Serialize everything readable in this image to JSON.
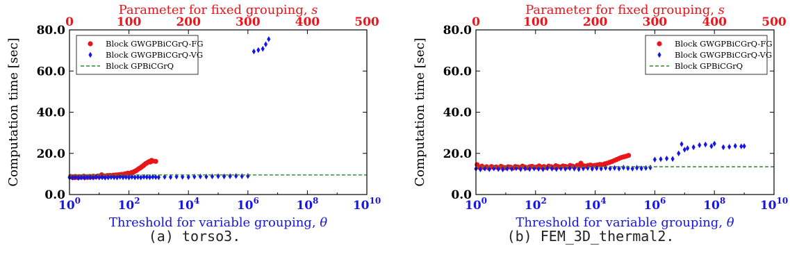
{
  "chart_data": [
    {
      "type": "scatter",
      "caption_label": "(a)",
      "caption_matrix": "torso3",
      "caption_suffix": ".",
      "ylabel": "Computation time [sec]",
      "xlabel_bottom": "Threshold for variable grouping, θ",
      "xlabel_top": "Parameter for fixed grouping, s",
      "ylim": [
        0,
        80
      ],
      "yticks": [
        0,
        20,
        40,
        60,
        80
      ],
      "ytick_labels": [
        "0.0",
        "20.0",
        "40.0",
        "60.0",
        "80.0"
      ],
      "x_bottom_scale": "log10",
      "x_bottom_lim": [
        1,
        10000000000
      ],
      "x_bottom_exponents": [
        0,
        2,
        4,
        6,
        8,
        10
      ],
      "x_top_lim": [
        0,
        500
      ],
      "x_top_ticks": [
        0,
        100,
        200,
        300,
        400,
        500
      ],
      "legend_position": "upper-left",
      "grid": false,
      "colors": {
        "fg": "#e8161b",
        "vg": "#1515e6",
        "ref": "#2a8a2a",
        "top_axis": "#e8161b",
        "bottom_axis": "#1515e6"
      },
      "series": [
        {
          "name": "Block GWGPBiCGrQ-FG",
          "axis": "top",
          "marker": "circle",
          "color": "#e8161b",
          "x": [
            2,
            4,
            6,
            8,
            10,
            12,
            14,
            16,
            18,
            20,
            22,
            24,
            26,
            28,
            30,
            32,
            34,
            36,
            38,
            40,
            42,
            44,
            46,
            48,
            50,
            52,
            54,
            56,
            58,
            60,
            62,
            64,
            66,
            68,
            70,
            72,
            74,
            76,
            78,
            80,
            82,
            84,
            86,
            88,
            90,
            92,
            94,
            96,
            98,
            100,
            102,
            104,
            106,
            108,
            110,
            112,
            114,
            116,
            118,
            120,
            122,
            124,
            126,
            128,
            130,
            132,
            134,
            136,
            138,
            140,
            145
          ],
          "y": [
            8.8,
            8.4,
            8.6,
            8.2,
            8.8,
            8.5,
            8.3,
            8.7,
            8.4,
            8.6,
            8.5,
            8.9,
            8.3,
            8.6,
            8.7,
            8.4,
            8.8,
            8.5,
            8.6,
            8.9,
            8.7,
            8.6,
            8.8,
            9.0,
            8.7,
            8.9,
            9.6,
            8.8,
            9.0,
            8.9,
            9.1,
            9.2,
            9.0,
            9.3,
            9.1,
            9.2,
            9.4,
            9.3,
            9.5,
            9.4,
            9.6,
            9.5,
            9.7,
            9.8,
            9.6,
            9.9,
            10.1,
            10.0,
            10.4,
            10.2,
            10.3,
            10.6,
            10.8,
            11.0,
            11.3,
            11.6,
            12.0,
            12.4,
            12.8,
            13.1,
            13.6,
            14.0,
            14.5,
            15.0,
            15.3,
            15.7,
            16.0,
            15.8,
            16.6,
            16.3,
            16.1
          ]
        },
        {
          "name": "Block GWGPBiCGrQ-VG",
          "axis": "bottom",
          "marker": "diamond",
          "color": "#1515e6",
          "x_exp": [
            0,
            0.1,
            0.2,
            0.3,
            0.4,
            0.5,
            0.6,
            0.7,
            0.8,
            0.9,
            1.0,
            1.1,
            1.2,
            1.3,
            1.4,
            1.5,
            1.6,
            1.7,
            1.8,
            1.9,
            2.0,
            2.1,
            2.2,
            2.3,
            2.4,
            2.5,
            2.6,
            2.7,
            2.8,
            2.9,
            3.0,
            3.2,
            3.4,
            3.6,
            3.8,
            4.0,
            4.2,
            4.4,
            4.6,
            4.8,
            5.0,
            5.2,
            5.4,
            5.6,
            5.8,
            6.0,
            6.2,
            6.35,
            6.5,
            6.6,
            6.7
          ],
          "y": [
            8.3,
            8.2,
            8.4,
            8.1,
            8.3,
            8.2,
            8.4,
            8.3,
            8.2,
            8.5,
            8.3,
            8.4,
            8.2,
            8.3,
            8.5,
            8.4,
            8.3,
            8.6,
            8.4,
            8.5,
            8.3,
            8.6,
            8.4,
            8.5,
            8.3,
            8.6,
            8.5,
            8.4,
            8.6,
            8.5,
            8.4,
            8.6,
            8.5,
            8.7,
            8.6,
            8.5,
            8.7,
            8.8,
            8.7,
            8.8,
            8.9,
            8.8,
            8.9,
            9.0,
            8.9,
            9.0,
            69.5,
            70.2,
            70.8,
            73.0,
            75.5
          ]
        },
        {
          "name": "Block GPBiCGrQ",
          "axis": "bottom",
          "marker": "dashed-line",
          "color": "#2a8a2a",
          "x_exp": [
            0,
            10
          ],
          "y": [
            9.5,
            9.5
          ]
        }
      ]
    },
    {
      "type": "scatter",
      "caption_label": "(b)",
      "caption_matrix": "FEM_3D_thermal2",
      "caption_suffix": ".",
      "ylabel": "Computation time [sec]",
      "xlabel_bottom": "Threshold for variable grouping, θ",
      "xlabel_top": "Parameter for fixed grouping, s",
      "ylim": [
        0,
        80
      ],
      "yticks": [
        0,
        20,
        40,
        60,
        80
      ],
      "ytick_labels": [
        "0.0",
        "20.0",
        "40.0",
        "60.0",
        "80.0"
      ],
      "x_bottom_scale": "log10",
      "x_bottom_lim": [
        1,
        10000000000
      ],
      "x_bottom_exponents": [
        0,
        2,
        4,
        6,
        8,
        10
      ],
      "x_top_lim": [
        0,
        500
      ],
      "x_top_ticks": [
        0,
        100,
        200,
        300,
        400,
        500
      ],
      "legend_position": "upper-right",
      "grid": false,
      "colors": {
        "fg": "#e8161b",
        "vg": "#1515e6",
        "ref": "#2a8a2a",
        "top_axis": "#e8161b",
        "bottom_axis": "#1515e6"
      },
      "series": [
        {
          "name": "Block GWGPBiCGrQ-FG",
          "axis": "top",
          "marker": "circle",
          "color": "#e8161b",
          "x": [
            2,
            6,
            10,
            14,
            18,
            22,
            26,
            30,
            34,
            38,
            42,
            46,
            50,
            54,
            58,
            62,
            66,
            70,
            74,
            78,
            82,
            86,
            90,
            94,
            98,
            102,
            106,
            110,
            114,
            118,
            122,
            126,
            130,
            134,
            138,
            142,
            146,
            150,
            154,
            158,
            162,
            166,
            170,
            174,
            176,
            180,
            184,
            188,
            192,
            196,
            200,
            204,
            208,
            212,
            216,
            220,
            224,
            228,
            232,
            236,
            240,
            244,
            248,
            252,
            256
          ],
          "y": [
            14.5,
            13.2,
            13.8,
            13.0,
            13.5,
            12.8,
            13.6,
            13.1,
            13.4,
            12.9,
            13.7,
            13.2,
            13.0,
            13.5,
            13.3,
            12.8,
            13.6,
            13.4,
            13.1,
            13.8,
            13.3,
            13.0,
            13.5,
            13.7,
            13.2,
            13.4,
            13.9,
            13.3,
            13.6,
            13.1,
            13.8,
            13.5,
            13.2,
            14.0,
            13.6,
            13.3,
            13.9,
            13.7,
            13.4,
            14.1,
            13.8,
            13.5,
            14.2,
            13.9,
            15.2,
            14.0,
            13.8,
            14.1,
            14.3,
            14.0,
            14.2,
            14.4,
            14.6,
            14.5,
            14.9,
            15.2,
            15.6,
            16.0,
            16.5,
            17.0,
            17.5,
            18.0,
            18.3,
            18.6,
            19.0
          ]
        },
        {
          "name": "Block GWGPBiCGrQ-VG",
          "axis": "bottom",
          "marker": "diamond",
          "color": "#1515e6",
          "x_exp": [
            0,
            0.15,
            0.3,
            0.45,
            0.6,
            0.75,
            0.9,
            1.05,
            1.2,
            1.35,
            1.5,
            1.65,
            1.8,
            1.95,
            2.1,
            2.25,
            2.4,
            2.55,
            2.7,
            2.85,
            3.0,
            3.15,
            3.3,
            3.45,
            3.6,
            3.75,
            3.9,
            4.05,
            4.2,
            4.35,
            4.5,
            4.65,
            4.8,
            4.95,
            5.1,
            5.25,
            5.4,
            5.55,
            5.7,
            5.85,
            6.0,
            6.2,
            6.4,
            6.6,
            6.8,
            6.9,
            7.0,
            7.1,
            7.3,
            7.5,
            7.7,
            7.9,
            8.0,
            8.3,
            8.5,
            8.7,
            8.9,
            9.0
          ],
          "y": [
            12.5,
            12.2,
            12.6,
            12.3,
            12.7,
            12.4,
            12.2,
            12.6,
            12.5,
            12.8,
            12.3,
            12.6,
            12.4,
            12.7,
            12.5,
            12.3,
            12.8,
            12.6,
            12.4,
            12.7,
            12.5,
            12.8,
            12.6,
            12.3,
            12.7,
            12.9,
            12.5,
            12.8,
            12.6,
            13.0,
            12.7,
            12.9,
            12.6,
            13.1,
            12.8,
            12.6,
            13.0,
            12.7,
            12.9,
            13.1,
            17.0,
            17.2,
            17.5,
            17.3,
            20.0,
            24.5,
            21.8,
            22.5,
            23.0,
            24.0,
            24.3,
            23.5,
            24.7,
            23.0,
            23.2,
            23.6,
            23.4,
            23.5
          ]
        },
        {
          "name": "Block GPBiCGrQ",
          "axis": "bottom",
          "marker": "dashed-line",
          "color": "#2a8a2a",
          "x_exp": [
            0,
            10
          ],
          "y": [
            13.5,
            13.5
          ]
        }
      ]
    }
  ]
}
